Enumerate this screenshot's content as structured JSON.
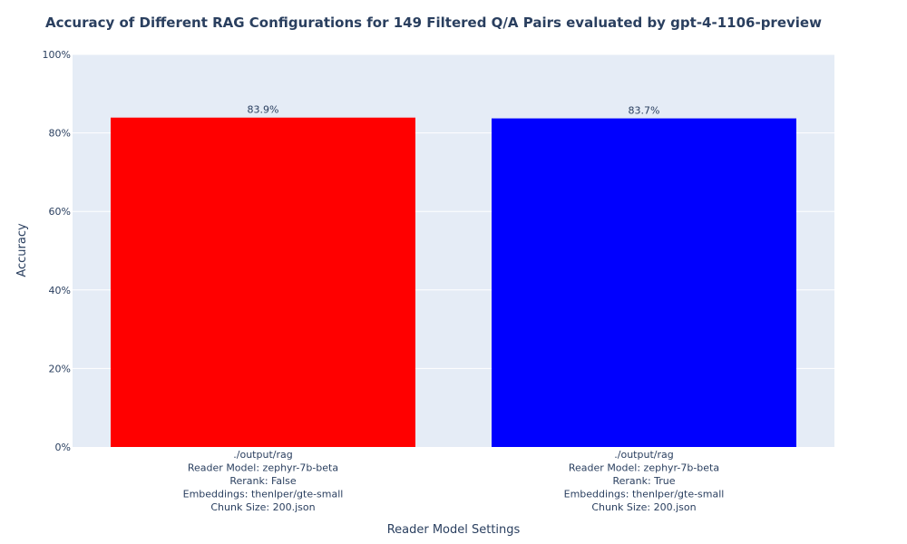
{
  "chart_data": {
    "type": "bar",
    "title": "Accuracy of Different RAG Configurations for 149 Filtered Q/A Pairs evaluated by gpt-4-1106-preview",
    "xlabel": "Reader Model Settings",
    "ylabel": "Accuracy",
    "ylim": [
      0,
      100
    ],
    "yticks": [
      0,
      20,
      40,
      60,
      80,
      100
    ],
    "ytick_labels": [
      "0%",
      "20%",
      "40%",
      "60%",
      "80%",
      "100%"
    ],
    "grid": true,
    "categories": [
      [
        "./output/rag",
        "Reader Model: zephyr-7b-beta",
        "Rerank: False",
        "Embeddings: thenlper/gte-small",
        "Chunk Size: 200.json"
      ],
      [
        "./output/rag",
        "Reader Model: zephyr-7b-beta",
        "Rerank: True",
        "Embeddings: thenlper/gte-small",
        "Chunk Size: 200.json"
      ]
    ],
    "values": [
      83.9,
      83.7
    ],
    "value_labels": [
      "83.9%",
      "83.7%"
    ],
    "bar_colors": [
      "#ff0000",
      "#0000ff"
    ],
    "plot_bg": "#e5ecf6",
    "grid_color": "#ffffff"
  }
}
